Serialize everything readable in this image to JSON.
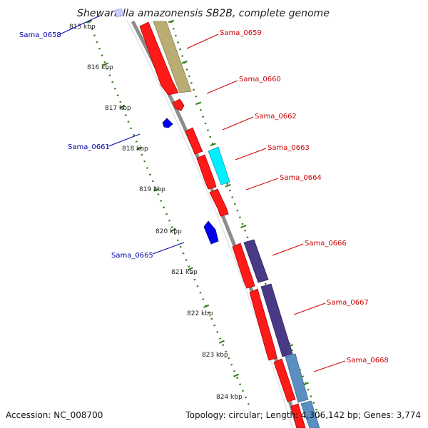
{
  "title": "Shewanella amazonensis SB2B, complete genome",
  "footer": {
    "accession": "Accession: NC_008700",
    "topology": "Topology: circular; Length: 4,306,142 bp; Genes: 3,774"
  },
  "colors": {
    "forward_cds": "#ff0000",
    "reverse_cds": "#0000ee",
    "forward_label": "#cc0000",
    "reverse_label": "#0000aa",
    "backbone": "#888888",
    "ticks": "#2e7d16",
    "olive_feature": "#b9ad73",
    "cyan_feature": "#00f0ff",
    "purple_feature": "#4a3a86",
    "steel_feature": "#5b8fc0"
  },
  "ticks": [
    "815 kbp",
    "816 kbp",
    "817 kbp",
    "818 kbp",
    "819 kbp",
    "820 kbp",
    "821 kbp",
    "822 kbp",
    "823 kbp",
    "824 kbp"
  ],
  "genes": [
    {
      "id": "Sama_0658",
      "strand": "reverse"
    },
    {
      "id": "Sama_0659",
      "strand": "forward"
    },
    {
      "id": "Sama_0660",
      "strand": "forward"
    },
    {
      "id": "Sama_0661",
      "strand": "reverse"
    },
    {
      "id": "Sama_0662",
      "strand": "forward"
    },
    {
      "id": "Sama_0663",
      "strand": "forward"
    },
    {
      "id": "Sama_0664",
      "strand": "forward"
    },
    {
      "id": "Sama_0665",
      "strand": "reverse"
    },
    {
      "id": "Sama_0666",
      "strand": "forward"
    },
    {
      "id": "Sama_0667",
      "strand": "forward"
    },
    {
      "id": "Sama_0668",
      "strand": "forward"
    }
  ]
}
